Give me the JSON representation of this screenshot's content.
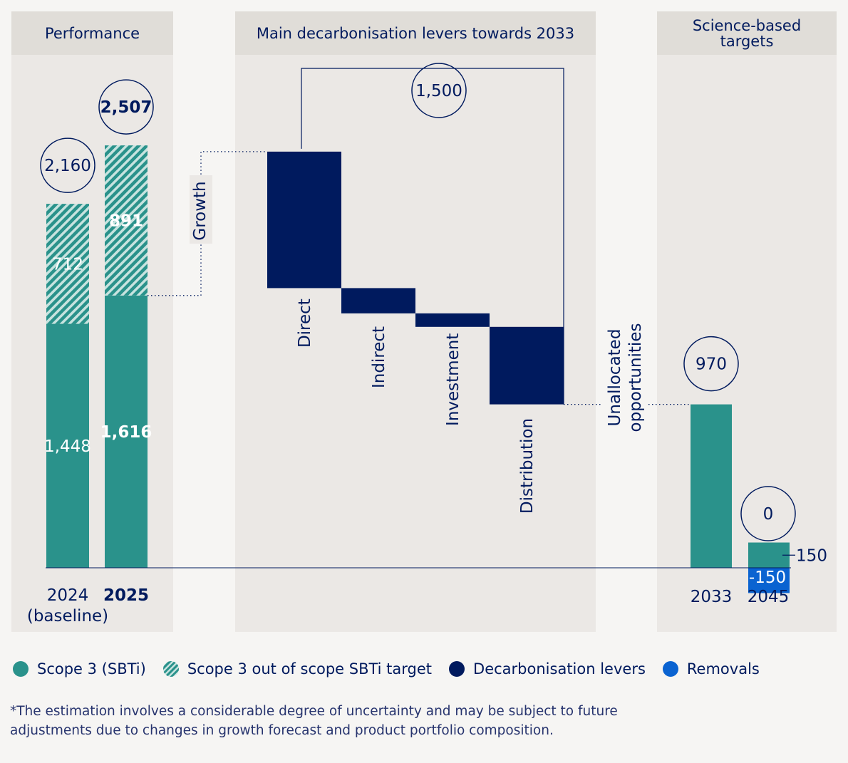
{
  "panels": {
    "performance": "Performance",
    "levers": "Main decarbonisation levers towards 2033",
    "sbt": "Science-based targets"
  },
  "colors": {
    "scope3": "#2a928b",
    "scope3_hatch_light": "#c7e3df",
    "levers": "#001a5e",
    "removals": "#0a63d1",
    "text": "#001a5e",
    "panel": "#ebe8e5",
    "panel_header": "#e0ddd8"
  },
  "chart_data": {
    "type": "bar",
    "title": "",
    "unit": "",
    "ylim": [
      -150,
      2600
    ],
    "performance": [
      {
        "year": "2024",
        "sublabel": "(baseline)",
        "bold": false,
        "scope3": 1448,
        "out_of_scope": 712,
        "total": 2160,
        "scope3_label": "1,448",
        "out_label": "712",
        "total_label": "2,160"
      },
      {
        "year": "2025",
        "sublabel": "",
        "bold": true,
        "scope3": 1616,
        "out_of_scope": 891,
        "total": 2507,
        "scope3_label": "1,616",
        "out_label": "891",
        "total_label": "2,507"
      }
    ],
    "growth_label": "Growth",
    "levers": {
      "total": 1500,
      "total_label": "1,500",
      "start": 2470,
      "items": [
        {
          "name": "Direct",
          "value": 810
        },
        {
          "name": "Indirect",
          "value": 150
        },
        {
          "name": "Investment",
          "value": 80
        },
        {
          "name": "Distribution",
          "value": 460
        }
      ]
    },
    "unallocated_label": [
      "Unallocated",
      "opportunities"
    ],
    "targets": [
      {
        "year": "2033",
        "value": 970,
        "label": "970"
      },
      {
        "year": "2045",
        "value": 0,
        "label": "0",
        "scope3": 150,
        "scope3_label": "150",
        "removals": -150,
        "removals_label": "-150"
      }
    ]
  },
  "legend": [
    {
      "name": "Scope 3 (SBTi)",
      "swatch": "scope"
    },
    {
      "name": "Scope 3 out of scope SBTi target",
      "swatch": "out"
    },
    {
      "name": "Decarbonisation levers",
      "swatch": "lev"
    },
    {
      "name": "Removals",
      "swatch": "rem"
    }
  ],
  "footnote": "*The estimation involves a considerable degree of uncertainty and may be subject to future adjustments due to changes in growth forecast and product portfolio composition."
}
